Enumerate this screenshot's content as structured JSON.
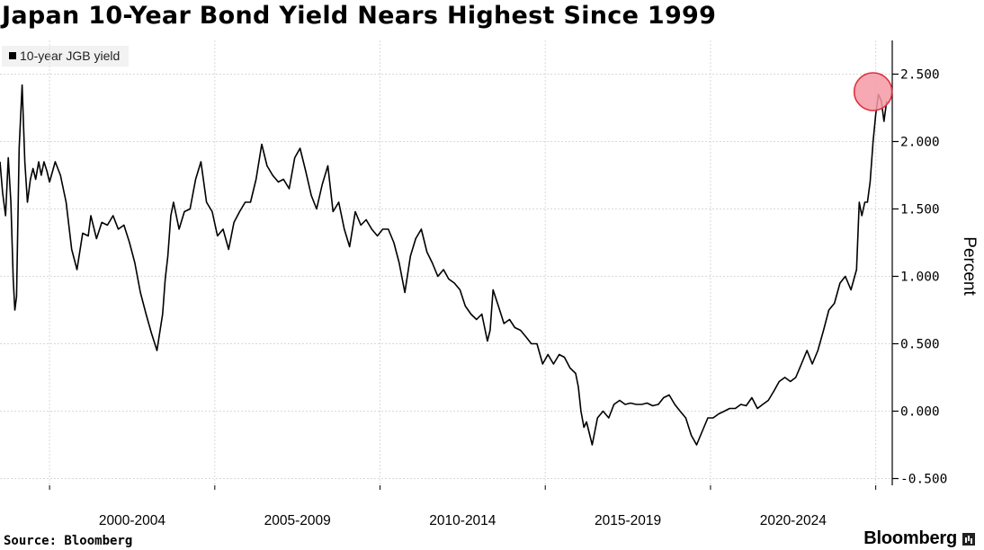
{
  "header": {
    "title": "Japan 10-Year Bond Yield Nears Highest Since 1999"
  },
  "footer": {
    "source": "Source: Bloomberg",
    "brand": "Bloomberg"
  },
  "colors": {
    "line": "#000000",
    "grid": "#d9d9d9",
    "highlight_fill": "#f49aa4",
    "highlight_stroke": "#e0303f"
  },
  "chart_data": {
    "type": "line",
    "title": "Japan 10-Year Bond Yield Nears Highest Since 1999",
    "ylabel": "Percent",
    "xlabel": "",
    "legend": {
      "entries": [
        "10-year JGB yield"
      ],
      "placement": "top-left"
    },
    "grid": true,
    "y_axis_side": "right",
    "xlim": [
      1998.5,
      2025.5
    ],
    "ylim": [
      -0.55,
      2.75
    ],
    "y_ticks": [
      -0.5,
      0.0,
      0.5,
      1.0,
      1.5,
      2.0,
      2.5
    ],
    "y_tick_labels": [
      "-0.500",
      "0.000",
      "0.500",
      "1.000",
      "1.500",
      "2.000",
      "2.500"
    ],
    "x_tick_labels": [
      {
        "label": "2000-2004",
        "x": 2002.5
      },
      {
        "label": "2005-2009",
        "x": 2007.5
      },
      {
        "label": "2010-2014",
        "x": 2012.5
      },
      {
        "label": "2015-2019",
        "x": 2017.5
      },
      {
        "label": "2020-2024",
        "x": 2022.5
      }
    ],
    "x_tick_marks": [
      2000,
      2005,
      2010,
      2015,
      2020,
      2025
    ],
    "highlight": {
      "x": 2024.92,
      "y": 2.37,
      "note": "recent peak circled"
    },
    "series": [
      {
        "name": "10-year JGB yield",
        "x": [
          1998.5,
          1998.58,
          1998.67,
          1998.75,
          1998.83,
          1998.9,
          1998.95,
          1999.0,
          1999.08,
          1999.17,
          1999.25,
          1999.33,
          1999.42,
          1999.5,
          1999.58,
          1999.67,
          1999.75,
          1999.83,
          1999.92,
          2000.0,
          2000.17,
          2000.33,
          2000.5,
          2000.67,
          2000.83,
          2001.0,
          2001.17,
          2001.25,
          2001.42,
          2001.58,
          2001.75,
          2001.92,
          2002.08,
          2002.25,
          2002.42,
          2002.58,
          2002.75,
          2002.92,
          2003.08,
          2003.25,
          2003.42,
          2003.5,
          2003.58,
          2003.67,
          2003.75,
          2003.92,
          2004.08,
          2004.25,
          2004.42,
          2004.58,
          2004.75,
          2004.92,
          2005.08,
          2005.25,
          2005.42,
          2005.58,
          2005.75,
          2005.92,
          2006.08,
          2006.25,
          2006.42,
          2006.58,
          2006.75,
          2006.92,
          2007.08,
          2007.25,
          2007.42,
          2007.58,
          2007.75,
          2007.92,
          2008.08,
          2008.25,
          2008.42,
          2008.58,
          2008.75,
          2008.92,
          2009.08,
          2009.25,
          2009.42,
          2009.58,
          2009.75,
          2009.92,
          2010.08,
          2010.25,
          2010.42,
          2010.58,
          2010.75,
          2010.92,
          2011.08,
          2011.25,
          2011.42,
          2011.58,
          2011.75,
          2011.92,
          2012.08,
          2012.25,
          2012.42,
          2012.58,
          2012.75,
          2012.92,
          2013.08,
          2013.25,
          2013.33,
          2013.42,
          2013.58,
          2013.75,
          2013.92,
          2014.08,
          2014.25,
          2014.42,
          2014.58,
          2014.75,
          2014.92,
          2015.08,
          2015.25,
          2015.42,
          2015.58,
          2015.75,
          2015.92,
          2016.0,
          2016.08,
          2016.17,
          2016.25,
          2016.42,
          2016.58,
          2016.75,
          2016.92,
          2017.08,
          2017.25,
          2017.42,
          2017.58,
          2017.75,
          2017.92,
          2018.08,
          2018.25,
          2018.42,
          2018.58,
          2018.75,
          2018.92,
          2019.08,
          2019.25,
          2019.42,
          2019.58,
          2019.75,
          2019.92,
          2020.08,
          2020.25,
          2020.42,
          2020.58,
          2020.75,
          2020.92,
          2021.08,
          2021.25,
          2021.42,
          2021.58,
          2021.75,
          2021.92,
          2022.08,
          2022.25,
          2022.42,
          2022.58,
          2022.75,
          2022.92,
          2023.08,
          2023.25,
          2023.42,
          2023.58,
          2023.75,
          2023.92,
          2024.08,
          2024.25,
          2024.42,
          2024.5,
          2024.58,
          2024.67,
          2024.75,
          2024.83,
          2024.92,
          2025.0,
          2025.08,
          2025.17,
          2025.25,
          2025.33
        ],
        "y": [
          1.85,
          1.62,
          1.45,
          1.88,
          1.55,
          0.98,
          0.75,
          0.85,
          1.95,
          2.42,
          1.85,
          1.55,
          1.72,
          1.8,
          1.72,
          1.85,
          1.75,
          1.85,
          1.78,
          1.7,
          1.85,
          1.75,
          1.55,
          1.2,
          1.05,
          1.32,
          1.3,
          1.45,
          1.28,
          1.4,
          1.38,
          1.45,
          1.35,
          1.38,
          1.25,
          1.1,
          0.88,
          0.72,
          0.58,
          0.45,
          0.72,
          0.98,
          1.15,
          1.45,
          1.55,
          1.35,
          1.48,
          1.5,
          1.72,
          1.85,
          1.55,
          1.48,
          1.3,
          1.35,
          1.2,
          1.4,
          1.48,
          1.55,
          1.55,
          1.72,
          1.98,
          1.82,
          1.75,
          1.7,
          1.72,
          1.65,
          1.88,
          1.95,
          1.78,
          1.6,
          1.5,
          1.68,
          1.82,
          1.48,
          1.55,
          1.35,
          1.22,
          1.48,
          1.38,
          1.42,
          1.35,
          1.3,
          1.35,
          1.35,
          1.25,
          1.1,
          0.88,
          1.15,
          1.28,
          1.35,
          1.18,
          1.1,
          1.0,
          1.05,
          0.98,
          0.95,
          0.9,
          0.78,
          0.72,
          0.68,
          0.72,
          0.52,
          0.6,
          0.9,
          0.78,
          0.65,
          0.68,
          0.62,
          0.6,
          0.55,
          0.5,
          0.5,
          0.35,
          0.42,
          0.35,
          0.42,
          0.4,
          0.32,
          0.28,
          0.18,
          0.0,
          -0.12,
          -0.08,
          -0.25,
          -0.05,
          0.0,
          -0.05,
          0.05,
          0.08,
          0.05,
          0.06,
          0.05,
          0.05,
          0.06,
          0.04,
          0.05,
          0.1,
          0.12,
          0.05,
          0.0,
          -0.05,
          -0.18,
          -0.25,
          -0.15,
          -0.05,
          -0.05,
          -0.02,
          0.0,
          0.02,
          0.02,
          0.05,
          0.04,
          0.1,
          0.02,
          0.05,
          0.08,
          0.15,
          0.22,
          0.25,
          0.22,
          0.25,
          0.35,
          0.45,
          0.35,
          0.45,
          0.6,
          0.75,
          0.8,
          0.95,
          1.0,
          0.9,
          1.05,
          1.55,
          1.45,
          1.55,
          1.55,
          1.7,
          2.0,
          2.2,
          2.35,
          2.3,
          2.15,
          2.3
        ]
      }
    ]
  }
}
